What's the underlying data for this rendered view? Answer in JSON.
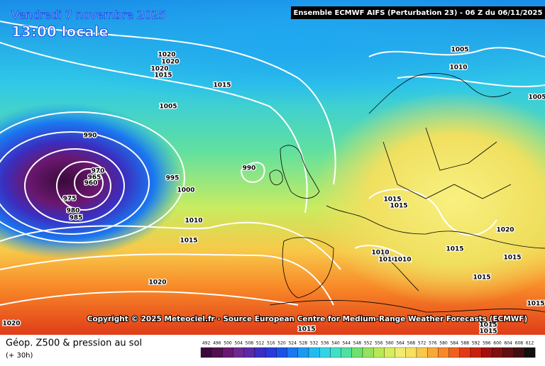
{
  "header": {
    "date": "Vendredi 7 novembre 2025",
    "local_time": "13:00 locale",
    "model": "Ensemble ECMWF AIFS  (Perturbation 23)  -  06 Z du 06/11/2025"
  },
  "copyright": "Copyright © 2025 Meteociel.fr - Source European Centre for Medium-Range Weather Forecasts (ECMWF)",
  "footer": {
    "title": "Géop. Z500 & pression au sol",
    "lead": "(+ 30h)"
  },
  "isobar_labels": [
    "1020",
    "1020",
    "1020",
    "1015",
    "1015",
    "1005",
    "990",
    "970",
    "965",
    "960",
    "975",
    "980",
    "985",
    "995",
    "1000",
    "990",
    "1010",
    "1015",
    "1020",
    "1020",
    "1005",
    "1010",
    "1005",
    "1015",
    "1015",
    "1020",
    "1015",
    "1010",
    "1010",
    "1010",
    "1015",
    "1015",
    "1015",
    "1015",
    "1015",
    "1015"
  ],
  "legend": {
    "labels": [
      "492",
      "496",
      "500",
      "504",
      "508",
      "512",
      "516",
      "520",
      "524",
      "528",
      "532",
      "536",
      "540",
      "544",
      "548",
      "552",
      "556",
      "560",
      "564",
      "568",
      "572",
      "576",
      "580",
      "584",
      "588",
      "592",
      "596",
      "600",
      "604",
      "608",
      "612"
    ],
    "colors": [
      "#3a0a3a",
      "#52104f",
      "#6a1870",
      "#6e2a8e",
      "#5a2aa8",
      "#3a2ec0",
      "#2a3ad8",
      "#1a52e8",
      "#1a78f0",
      "#1a9af0",
      "#20bcf0",
      "#30d4e8",
      "#40e0c8",
      "#50e0a0",
      "#70e070",
      "#98e060",
      "#b8e858",
      "#d8ec60",
      "#f0ec70",
      "#f8e060",
      "#f8c848",
      "#f8a838",
      "#f88828",
      "#f06020",
      "#e03c18",
      "#c82010",
      "#a01010",
      "#801010",
      "#601010",
      "#401010",
      "#101010"
    ]
  }
}
